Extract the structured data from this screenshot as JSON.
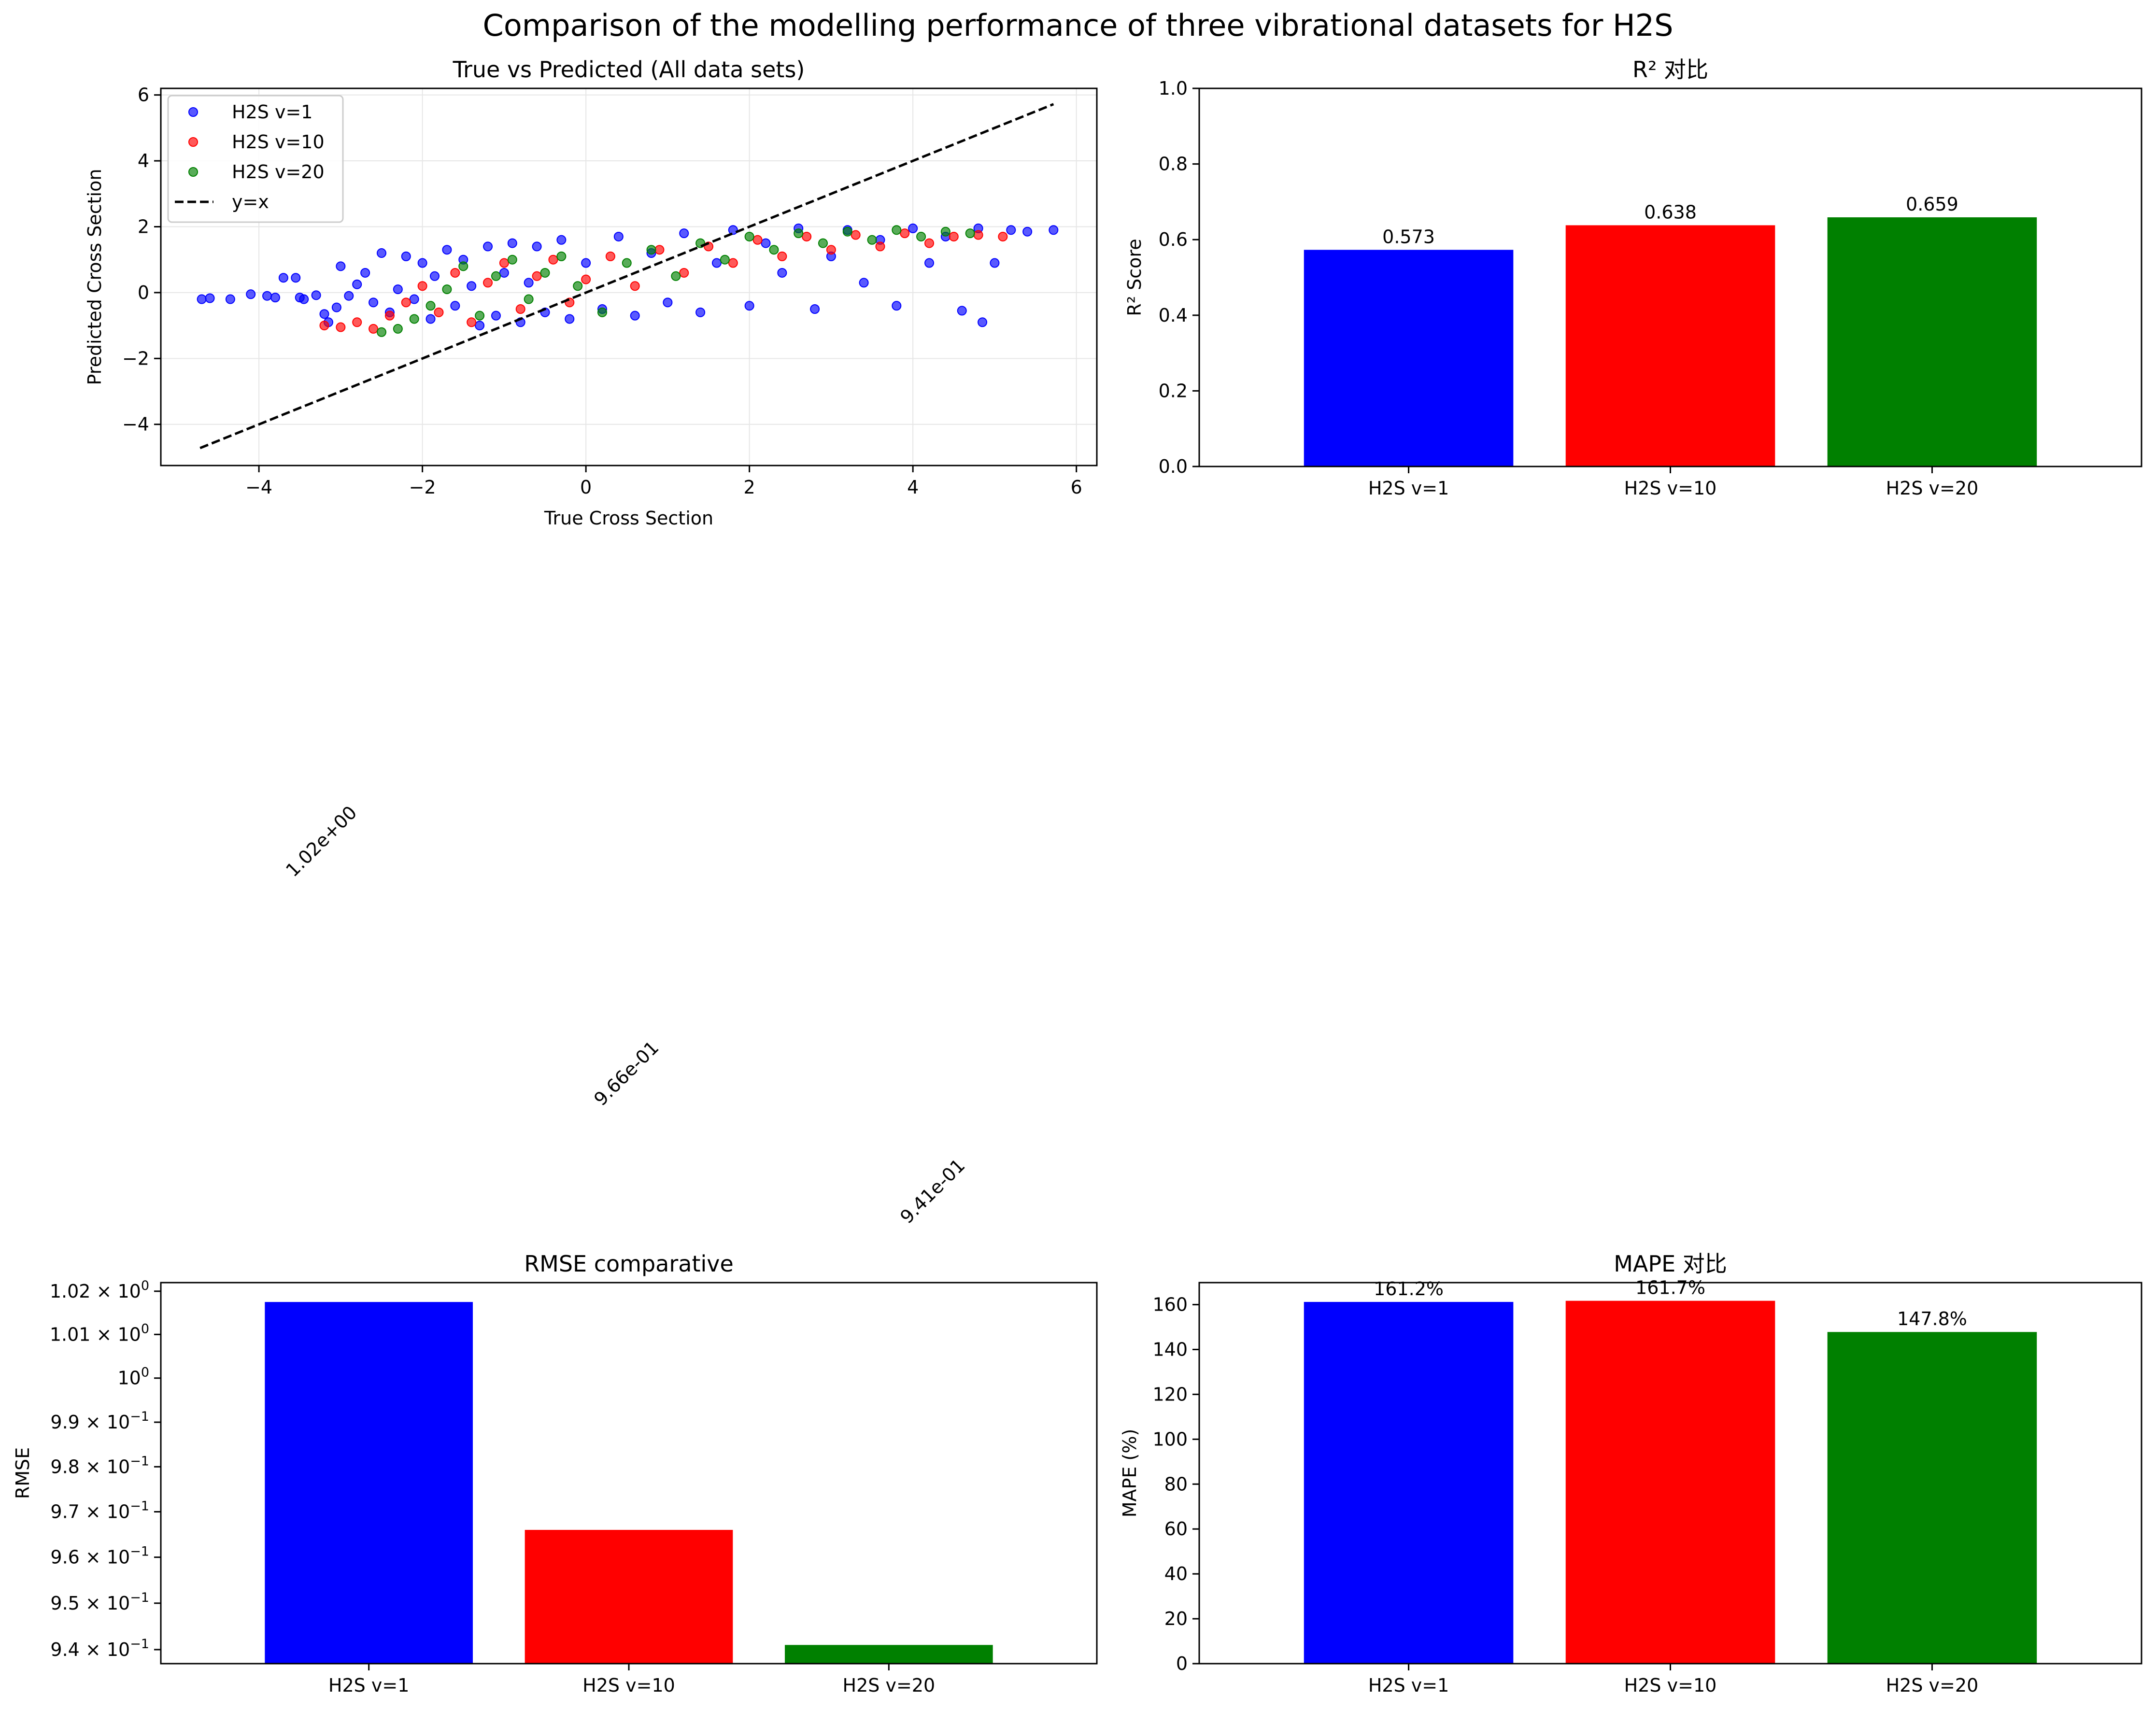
{
  "figure": {
    "title": "Comparison of the modelling performance of three vibrational datasets for H2S"
  },
  "colors": {
    "v1": "#0000ff",
    "v10": "#ff0000",
    "v20": "#008000",
    "identity_line": "#000000",
    "grid": "#e6e6e6"
  },
  "chart_data": [
    {
      "id": "scatter",
      "type": "scatter",
      "title": "True vs Predicted (All data sets)",
      "xlabel": "True Cross Section",
      "ylabel": "Predicted Cross Section",
      "xlim": [
        -5.2,
        6.25
      ],
      "ylim": [
        -5.25,
        6.2
      ],
      "xticks": [
        -4,
        -2,
        0,
        2,
        4,
        6
      ],
      "yticks": [
        -4,
        -2,
        0,
        2,
        4,
        6
      ],
      "grid": true,
      "legend_position": "top-left",
      "legend": [
        "H2S v=1",
        "H2S v=10",
        "H2S v=20",
        "y=x"
      ],
      "identity_line": {
        "label": "y=x",
        "x": [
          -4.72,
          5.72
        ],
        "y": [
          -4.72,
          5.72
        ]
      },
      "series": [
        {
          "name": "H2S v=1",
          "color": "#0000ff",
          "points": [
            [
              -4.7,
              -0.2
            ],
            [
              -4.6,
              -0.17
            ],
            [
              -4.35,
              -0.2
            ],
            [
              -4.1,
              -0.05
            ],
            [
              -3.9,
              -0.1
            ],
            [
              -3.8,
              -0.15
            ],
            [
              -3.7,
              0.45
            ],
            [
              -3.55,
              0.45
            ],
            [
              -3.5,
              -0.15
            ],
            [
              -3.45,
              -0.2
            ],
            [
              -3.3,
              -0.08
            ],
            [
              -3.2,
              -0.65
            ],
            [
              -3.15,
              -0.9
            ],
            [
              -3.05,
              -0.45
            ],
            [
              -3.0,
              0.8
            ],
            [
              -2.9,
              -0.1
            ],
            [
              -2.8,
              0.25
            ],
            [
              -2.7,
              0.6
            ],
            [
              -2.6,
              -0.3
            ],
            [
              -2.5,
              1.2
            ],
            [
              -2.4,
              -0.6
            ],
            [
              -2.3,
              0.1
            ],
            [
              -2.2,
              1.1
            ],
            [
              -2.1,
              -0.2
            ],
            [
              -2.0,
              0.9
            ],
            [
              -1.9,
              -0.8
            ],
            [
              -1.85,
              0.5
            ],
            [
              -1.7,
              1.3
            ],
            [
              -1.6,
              -0.4
            ],
            [
              -1.5,
              1.0
            ],
            [
              -1.4,
              0.2
            ],
            [
              -1.3,
              -1.0
            ],
            [
              -1.2,
              1.4
            ],
            [
              -1.1,
              -0.7
            ],
            [
              -1.0,
              0.6
            ],
            [
              -0.9,
              1.5
            ],
            [
              -0.8,
              -0.9
            ],
            [
              -0.7,
              0.3
            ],
            [
              -0.6,
              1.4
            ],
            [
              -0.5,
              -0.6
            ],
            [
              -0.3,
              1.6
            ],
            [
              -0.2,
              -0.8
            ],
            [
              0.0,
              0.9
            ],
            [
              0.2,
              -0.5
            ],
            [
              0.4,
              1.7
            ],
            [
              0.6,
              -0.7
            ],
            [
              0.8,
              1.2
            ],
            [
              1.0,
              -0.3
            ],
            [
              1.2,
              1.8
            ],
            [
              1.4,
              -0.6
            ],
            [
              1.6,
              0.9
            ],
            [
              1.8,
              1.9
            ],
            [
              2.0,
              -0.4
            ],
            [
              2.2,
              1.5
            ],
            [
              2.4,
              0.6
            ],
            [
              2.6,
              1.95
            ],
            [
              2.8,
              -0.5
            ],
            [
              3.0,
              1.1
            ],
            [
              3.2,
              1.9
            ],
            [
              3.4,
              0.3
            ],
            [
              3.6,
              1.6
            ],
            [
              3.8,
              -0.4
            ],
            [
              4.0,
              1.95
            ],
            [
              4.2,
              0.9
            ],
            [
              4.4,
              1.7
            ],
            [
              4.6,
              -0.55
            ],
            [
              4.8,
              1.95
            ],
            [
              4.85,
              -0.9
            ],
            [
              5.0,
              0.9
            ],
            [
              5.2,
              1.9
            ],
            [
              5.4,
              1.85
            ],
            [
              5.72,
              1.9
            ]
          ]
        },
        {
          "name": "H2S v=10",
          "color": "#ff0000",
          "points": [
            [
              -3.2,
              -1.0
            ],
            [
              -3.0,
              -1.05
            ],
            [
              -2.8,
              -0.9
            ],
            [
              -2.6,
              -1.1
            ],
            [
              -2.4,
              -0.7
            ],
            [
              -2.2,
              -0.3
            ],
            [
              -2.0,
              0.2
            ],
            [
              -1.8,
              -0.6
            ],
            [
              -1.6,
              0.6
            ],
            [
              -1.4,
              -0.9
            ],
            [
              -1.2,
              0.3
            ],
            [
              -1.0,
              0.9
            ],
            [
              -0.8,
              -0.5
            ],
            [
              -0.6,
              0.5
            ],
            [
              -0.4,
              1.0
            ],
            [
              -0.2,
              -0.3
            ],
            [
              0.0,
              0.4
            ],
            [
              0.3,
              1.1
            ],
            [
              0.6,
              0.2
            ],
            [
              0.9,
              1.3
            ],
            [
              1.2,
              0.6
            ],
            [
              1.5,
              1.4
            ],
            [
              1.8,
              0.9
            ],
            [
              2.1,
              1.6
            ],
            [
              2.4,
              1.1
            ],
            [
              2.7,
              1.7
            ],
            [
              3.0,
              1.3
            ],
            [
              3.3,
              1.75
            ],
            [
              3.6,
              1.4
            ],
            [
              3.9,
              1.8
            ],
            [
              4.2,
              1.5
            ],
            [
              4.5,
              1.7
            ],
            [
              4.8,
              1.75
            ],
            [
              5.1,
              1.7
            ]
          ]
        },
        {
          "name": "H2S v=20",
          "color": "#008000",
          "points": [
            [
              -2.5,
              -1.2
            ],
            [
              -2.3,
              -1.1
            ],
            [
              -2.1,
              -0.8
            ],
            [
              -1.9,
              -0.4
            ],
            [
              -1.7,
              0.1
            ],
            [
              -1.5,
              0.8
            ],
            [
              -1.3,
              -0.7
            ],
            [
              -1.1,
              0.5
            ],
            [
              -0.9,
              1.0
            ],
            [
              -0.7,
              -0.2
            ],
            [
              -0.5,
              0.6
            ],
            [
              -0.3,
              1.1
            ],
            [
              -0.1,
              0.2
            ],
            [
              0.2,
              -0.6
            ],
            [
              0.5,
              0.9
            ],
            [
              0.8,
              1.3
            ],
            [
              1.1,
              0.5
            ],
            [
              1.4,
              1.5
            ],
            [
              1.7,
              1.0
            ],
            [
              2.0,
              1.7
            ],
            [
              2.3,
              1.3
            ],
            [
              2.6,
              1.8
            ],
            [
              2.9,
              1.5
            ],
            [
              3.2,
              1.85
            ],
            [
              3.5,
              1.6
            ],
            [
              3.8,
              1.9
            ],
            [
              4.1,
              1.7
            ],
            [
              4.4,
              1.85
            ],
            [
              4.7,
              1.8
            ]
          ]
        }
      ]
    },
    {
      "id": "r2",
      "type": "bar",
      "title": "R² 对比",
      "xlabel": "",
      "ylabel": "R² Score",
      "categories": [
        "H2S v=1",
        "H2S v=10",
        "H2S v=20"
      ],
      "values": [
        0.573,
        0.638,
        0.659
      ],
      "value_labels": [
        "0.573",
        "0.638",
        "0.659"
      ],
      "ylim": [
        0,
        1.0
      ],
      "yticks": [
        "0.0",
        "0.2",
        "0.4",
        "0.6",
        "0.8",
        "1.0"
      ],
      "grid": false
    },
    {
      "id": "rmse",
      "type": "bar",
      "title": "RMSE comparative",
      "xlabel": "",
      "ylabel": "RMSE",
      "scale": "log",
      "categories": [
        "H2S v=1",
        "H2S v=10",
        "H2S v=20"
      ],
      "values": [
        1.0175,
        0.966,
        0.941
      ],
      "value_labels": [
        "1.02e+00",
        "9.66e-01",
        "9.41e-01"
      ],
      "ylim": [
        0.937,
        1.022
      ],
      "yticks": [
        {
          "value": 0.94,
          "mantissa": "9.4",
          "exp": "−1"
        },
        {
          "value": 0.95,
          "mantissa": "9.5",
          "exp": "−1"
        },
        {
          "value": 0.96,
          "mantissa": "9.6",
          "exp": "−1"
        },
        {
          "value": 0.97,
          "mantissa": "9.7",
          "exp": "−1"
        },
        {
          "value": 0.98,
          "mantissa": "9.8",
          "exp": "−1"
        },
        {
          "value": 0.99,
          "mantissa": "9.9",
          "exp": "−1"
        },
        {
          "value": 1.0,
          "mantissa": "",
          "exp": "0"
        },
        {
          "value": 1.01,
          "mantissa": "1.01",
          "exp": "0"
        },
        {
          "value": 1.02,
          "mantissa": "1.02",
          "exp": "0"
        }
      ],
      "grid": false
    },
    {
      "id": "mape",
      "type": "bar",
      "title": "MAPE 对比",
      "xlabel": "",
      "ylabel": "MAPE (%)",
      "categories": [
        "H2S v=1",
        "H2S v=10",
        "H2S v=20"
      ],
      "values": [
        161.2,
        161.7,
        147.8
      ],
      "value_labels": [
        "161.2%",
        "161.7%",
        "147.8%"
      ],
      "ylim": [
        0,
        169.8
      ],
      "yticks": [
        "0",
        "20",
        "40",
        "60",
        "80",
        "100",
        "120",
        "140",
        "160"
      ],
      "grid": false
    }
  ]
}
